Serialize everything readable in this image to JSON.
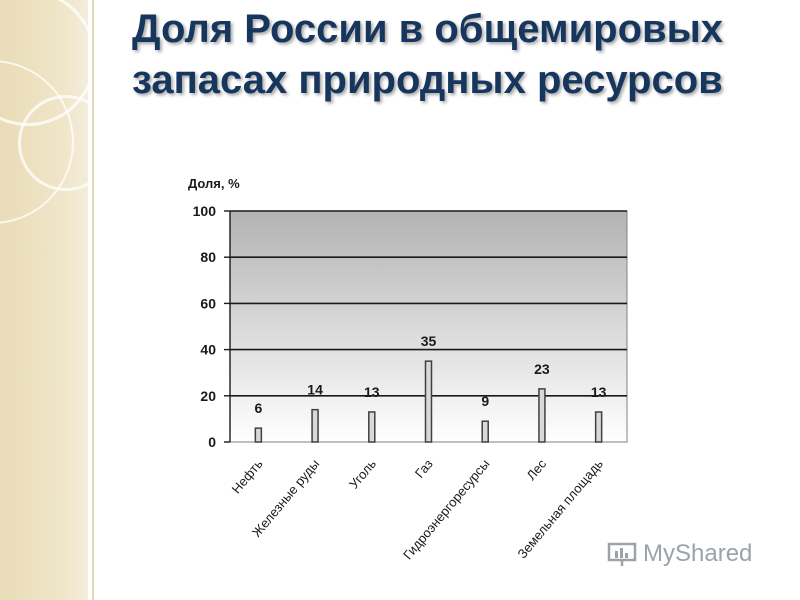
{
  "slide": {
    "title": "Доля России в общемировых запасах природных ресурсов"
  },
  "watermark": {
    "text": "MyShared"
  },
  "colors": {
    "title": "#17365d",
    "bar_fill": "#d9d9d9",
    "bar_stroke": "#404040",
    "plot_top": "#b3b3b3",
    "plot_bottom": "#ffffff"
  },
  "chart_data": {
    "type": "bar",
    "title": "",
    "ylabel": "Доля, %",
    "xlabel": "",
    "ylim": [
      0,
      100
    ],
    "yticks": [
      0,
      20,
      40,
      60,
      80,
      100
    ],
    "grid": true,
    "categories": [
      "Нефть",
      "Железные руды",
      "Уголь",
      "Газ",
      "Гидроэнергоресурсы",
      "Лес",
      "Земельная площадь"
    ],
    "values": [
      6,
      14,
      13,
      35,
      9,
      23,
      13
    ]
  }
}
